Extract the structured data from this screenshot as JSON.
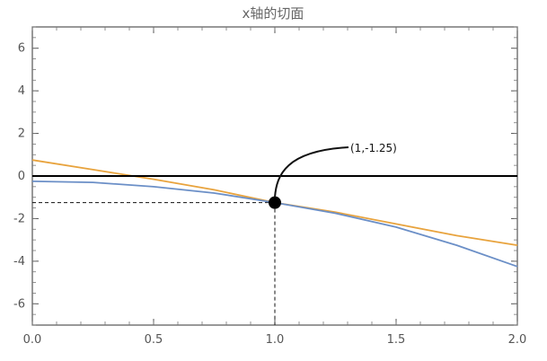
{
  "chart_data": {
    "type": "line",
    "title": "x轴的切面",
    "xlabel": "",
    "ylabel": "",
    "xlim": [
      0,
      2
    ],
    "ylim": [
      -7,
      7
    ],
    "xticks": [
      0.0,
      0.5,
      1.0,
      1.5,
      2.0
    ],
    "xtick_labels": [
      "0.0",
      "0.5",
      "1.0",
      "1.5",
      "2.0"
    ],
    "yticks": [
      -6,
      -4,
      -2,
      0,
      2,
      4,
      6
    ],
    "ytick_labels": [
      "-6",
      "-4",
      "-2",
      "0",
      "2",
      "4",
      "6"
    ],
    "grid": false,
    "legend": "none",
    "series": [
      {
        "color": "#e8a33d",
        "x": [
          0.0,
          0.25,
          0.5,
          0.75,
          1.0,
          1.25,
          1.5,
          1.75,
          2.0
        ],
        "y": [
          0.75,
          0.3,
          -0.15,
          -0.65,
          -1.25,
          -1.7,
          -2.25,
          -2.8,
          -3.25
        ]
      },
      {
        "color": "#6b8fc7",
        "x": [
          0.0,
          0.25,
          0.5,
          0.75,
          1.0,
          1.25,
          1.5,
          1.75,
          2.0
        ],
        "y": [
          -0.25,
          -0.3,
          -0.5,
          -0.8,
          -1.25,
          -1.75,
          -2.4,
          -3.25,
          -4.25
        ]
      },
      {
        "color": "#000000",
        "x": [
          0.0,
          2.0
        ],
        "y": [
          0.0,
          0.0
        ]
      }
    ],
    "reference_lines": {
      "vertical_x": 1.0,
      "horizontal_y": -1.25,
      "style": "dashed"
    },
    "point": {
      "x": 1.0,
      "y": -1.25,
      "color": "#000000"
    },
    "annotation": {
      "text": "(1,-1.25)",
      "x": 1.0,
      "y": -1.25
    }
  }
}
